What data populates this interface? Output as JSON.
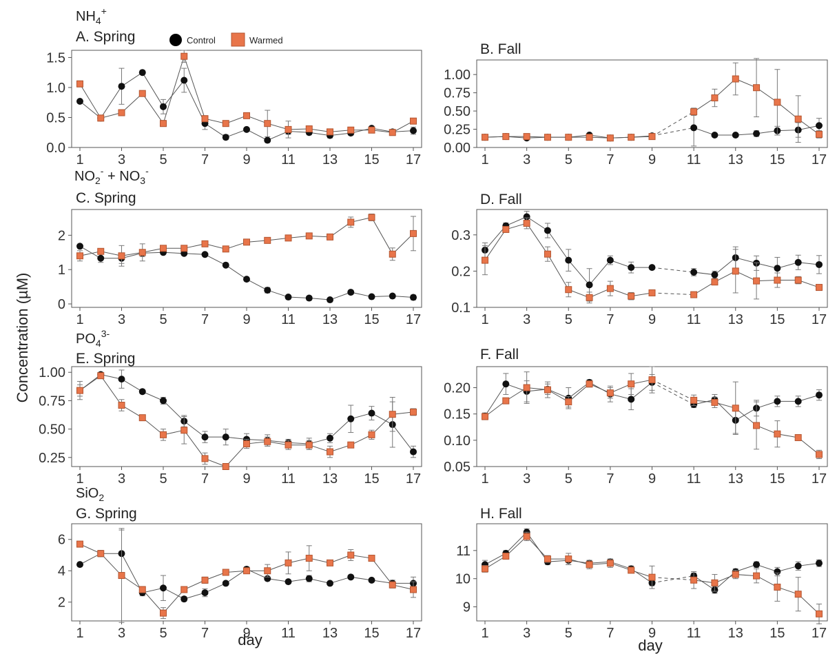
{
  "figure": {
    "ylabel": "Concentration (µM)",
    "xlabel": "day",
    "x_ticks": [
      1,
      3,
      5,
      7,
      9,
      11,
      13,
      15,
      17
    ],
    "legend": [
      {
        "name": "Control",
        "marker": "circle",
        "color": "#000000"
      },
      {
        "name": "Warmed",
        "marker": "square",
        "color": "#E8754A"
      }
    ],
    "colors": {
      "control": "#111111",
      "warmed": "#E8754A",
      "line": "#555555",
      "frame": "#555555"
    },
    "nutrient_labels": [
      "NH4+",
      "NO2- + NO3-",
      "PO43-",
      "SiO2"
    ]
  },
  "chart_data": [
    {
      "type": "line",
      "title": "A. Spring",
      "nutrient": "NH4+",
      "ylim": [
        0,
        1.62
      ],
      "yticks": [
        "0.0",
        "0.5",
        "1.0",
        "1.5"
      ],
      "ytick_values": [
        0,
        0.5,
        1.0,
        1.5
      ],
      "x": [
        1,
        2,
        3,
        4,
        5,
        6,
        7,
        8,
        9,
        10,
        11,
        12,
        13,
        14,
        15,
        16,
        17
      ],
      "series": [
        {
          "name": "Control",
          "values": [
            0.77,
            0.49,
            1.02,
            1.25,
            0.68,
            1.12,
            0.4,
            0.17,
            0.3,
            0.12,
            0.27,
            0.25,
            0.2,
            0.24,
            0.32,
            0.26,
            0.28
          ],
          "errors": [
            0.02,
            0.05,
            0.3,
            0.02,
            0.12,
            0.2,
            0.1,
            0.04,
            0.03,
            0.03,
            0.05,
            0.04,
            0.04,
            0.03,
            0.03,
            0.04,
            0.06
          ]
        },
        {
          "name": "Warmed",
          "values": [
            1.06,
            0.49,
            0.58,
            0.9,
            0.4,
            1.52,
            0.48,
            0.4,
            0.53,
            0.4,
            0.3,
            0.31,
            0.26,
            0.29,
            0.29,
            0.25,
            0.44
          ],
          "errors": [
            0.05,
            0.04,
            0.04,
            0.03,
            0.05,
            0.1,
            0.05,
            0.03,
            0.03,
            0.22,
            0.14,
            0.05,
            0.04,
            0.04,
            0.04,
            0.05,
            0.04
          ]
        }
      ]
    },
    {
      "type": "line",
      "title": "B. Fall",
      "ylim": [
        0,
        1.2
      ],
      "yticks": [
        "0.00",
        "0.25",
        "0.50",
        "0.75",
        "1.00"
      ],
      "ytick_values": [
        0,
        0.25,
        0.5,
        0.75,
        1.0
      ],
      "x": [
        1,
        2,
        3,
        4,
        5,
        6,
        7,
        8,
        9,
        11,
        12,
        13,
        14,
        15,
        16,
        17
      ],
      "dashed_gap": [
        9,
        11
      ],
      "series": [
        {
          "name": "Control",
          "values": [
            0.14,
            0.15,
            0.13,
            0.14,
            0.14,
            0.17,
            0.13,
            0.14,
            0.16,
            0.27,
            0.17,
            0.17,
            0.19,
            0.23,
            0.24,
            0.3
          ],
          "errors": [
            0.02,
            0.02,
            0.02,
            0.02,
            0.02,
            0.02,
            0.02,
            0.02,
            0.02,
            0.25,
            0.02,
            0.02,
            0.04,
            0.06,
            0.1,
            0.1
          ]
        },
        {
          "name": "Warmed",
          "values": [
            0.14,
            0.15,
            0.15,
            0.14,
            0.14,
            0.14,
            0.13,
            0.14,
            0.15,
            0.49,
            0.68,
            0.94,
            0.82,
            0.62,
            0.39,
            0.18
          ],
          "errors": [
            0.02,
            0.02,
            0.02,
            0.02,
            0.02,
            0.02,
            0.02,
            0.02,
            0.02,
            0.05,
            0.12,
            0.22,
            0.4,
            0.45,
            0.32,
            0.05
          ]
        }
      ]
    },
    {
      "type": "line",
      "title": "C. Spring",
      "nutrient": "NO2- + NO3-",
      "ylim": [
        -0.1,
        2.75
      ],
      "yticks": [
        "0",
        "1",
        "2"
      ],
      "ytick_values": [
        0,
        1,
        2
      ],
      "x": [
        1,
        2,
        3,
        4,
        5,
        6,
        7,
        8,
        9,
        10,
        11,
        12,
        13,
        14,
        15,
        16,
        17
      ],
      "series": [
        {
          "name": "Control",
          "values": [
            1.68,
            1.33,
            1.33,
            1.48,
            1.5,
            1.47,
            1.44,
            1.13,
            0.72,
            0.4,
            0.2,
            0.17,
            0.12,
            0.34,
            0.21,
            0.23,
            0.19
          ],
          "errors": [
            0.05,
            0.12,
            0.15,
            0.1,
            0.05,
            0.05,
            0.04,
            0.04,
            0.04,
            0.08,
            0.04,
            0.06,
            0.04,
            0.04,
            0.04,
            0.04,
            0.07
          ]
        },
        {
          "name": "Warmed",
          "values": [
            1.4,
            1.53,
            1.4,
            1.5,
            1.62,
            1.62,
            1.75,
            1.6,
            1.8,
            1.85,
            1.92,
            1.98,
            1.95,
            2.38,
            2.52,
            1.45,
            2.05
          ],
          "errors": [
            0.15,
            0.08,
            0.3,
            0.25,
            0.08,
            0.08,
            0.05,
            0.04,
            0.04,
            0.04,
            0.04,
            0.04,
            0.04,
            0.15,
            0.1,
            0.18,
            0.5
          ]
        }
      ]
    },
    {
      "type": "line",
      "title": "D. Fall",
      "ylim": [
        0.1,
        0.37
      ],
      "yticks": [
        "0.1",
        "0.2",
        "0.3"
      ],
      "ytick_values": [
        0.1,
        0.2,
        0.3
      ],
      "x": [
        1,
        2,
        3,
        4,
        5,
        6,
        7,
        8,
        9,
        11,
        12,
        13,
        14,
        15,
        16,
        17
      ],
      "dashed_gap": [
        9,
        11
      ],
      "series": [
        {
          "name": "Control",
          "values": [
            0.258,
            0.325,
            0.35,
            0.312,
            0.23,
            0.162,
            0.23,
            0.21,
            0.21,
            0.197,
            0.19,
            0.237,
            0.222,
            0.208,
            0.224,
            0.218
          ],
          "errors": [
            0.02,
            0.008,
            0.015,
            0.02,
            0.03,
            0.045,
            0.012,
            0.015,
            0.005,
            0.01,
            0.01,
            0.03,
            0.02,
            0.03,
            0.02,
            0.025
          ]
        },
        {
          "name": "Warmed",
          "values": [
            0.23,
            0.315,
            0.332,
            0.247,
            0.149,
            0.127,
            0.152,
            0.131,
            0.14,
            0.135,
            0.17,
            0.2,
            0.173,
            0.175,
            0.175,
            0.155
          ],
          "errors": [
            0.04,
            0.008,
            0.015,
            0.02,
            0.02,
            0.015,
            0.02,
            0.01,
            0.005,
            0.005,
            0.005,
            0.06,
            0.05,
            0.02,
            0.01,
            0.008
          ]
        }
      ]
    },
    {
      "type": "line",
      "title": "E. Spring",
      "nutrient": "PO43-",
      "ylim": [
        0.17,
        1.05
      ],
      "yticks": [
        "0.25",
        "0.50",
        "0.75",
        "1.00"
      ],
      "ytick_values": [
        0.25,
        0.5,
        0.75,
        1.0
      ],
      "x": [
        1,
        2,
        3,
        4,
        5,
        6,
        7,
        8,
        9,
        10,
        11,
        12,
        13,
        14,
        15,
        16,
        17
      ],
      "series": [
        {
          "name": "Control",
          "values": [
            0.84,
            0.98,
            0.94,
            0.83,
            0.75,
            0.57,
            0.43,
            0.43,
            0.41,
            0.4,
            0.38,
            0.37,
            0.42,
            0.59,
            0.64,
            0.54,
            0.3
          ],
          "errors": [
            0.08,
            0.02,
            0.08,
            0.02,
            0.03,
            0.05,
            0.05,
            0.07,
            0.05,
            0.05,
            0.03,
            0.05,
            0.04,
            0.12,
            0.06,
            0.2,
            0.05
          ]
        },
        {
          "name": "Warmed",
          "values": [
            0.84,
            0.97,
            0.71,
            0.6,
            0.45,
            0.49,
            0.24,
            0.17,
            0.37,
            0.39,
            0.36,
            0.36,
            0.3,
            0.36,
            0.45,
            0.63,
            0.65
          ],
          "errors": [
            0.05,
            0.02,
            0.05,
            0.02,
            0.05,
            0.12,
            0.05,
            0.02,
            0.04,
            0.04,
            0.04,
            0.04,
            0.05,
            0.02,
            0.04,
            0.15,
            0.03
          ]
        }
      ]
    },
    {
      "type": "line",
      "title": "F. Fall",
      "ylim": [
        0.05,
        0.24
      ],
      "yticks": [
        "0.05",
        "0.10",
        "0.15",
        "0.20"
      ],
      "ytick_values": [
        0.05,
        0.1,
        0.15,
        0.2
      ],
      "x": [
        1,
        2,
        3,
        4,
        5,
        6,
        7,
        8,
        9,
        11,
        12,
        13,
        14,
        15,
        16,
        17
      ],
      "dashed_gap": [
        9,
        11
      ],
      "series": [
        {
          "name": "Control",
          "values": [
            0.146,
            0.207,
            0.193,
            0.197,
            0.18,
            0.21,
            0.188,
            0.178,
            0.21,
            0.168,
            0.177,
            0.138,
            0.161,
            0.174,
            0.174,
            0.186
          ],
          "errors": [
            0.006,
            0.02,
            0.02,
            0.01,
            0.02,
            0.005,
            0.015,
            0.02,
            0.015,
            0.006,
            0.01,
            0.025,
            0.015,
            0.01,
            0.01,
            0.01
          ]
        },
        {
          "name": "Warmed",
          "values": [
            0.145,
            0.175,
            0.2,
            0.196,
            0.173,
            0.207,
            0.19,
            0.207,
            0.215,
            0.176,
            0.172,
            0.161,
            0.128,
            0.112,
            0.105,
            0.073
          ],
          "errors": [
            0.006,
            0.005,
            0.03,
            0.015,
            0.01,
            0.006,
            0.01,
            0.02,
            0.025,
            0.01,
            0.01,
            0.05,
            0.045,
            0.025,
            0.004,
            0.008
          ]
        }
      ]
    },
    {
      "type": "line",
      "title": "G. Spring",
      "nutrient": "SiO2",
      "ylim": [
        0.8,
        7.0
      ],
      "yticks": [
        "2",
        "4",
        "6"
      ],
      "ytick_values": [
        2,
        4,
        6
      ],
      "x": [
        1,
        2,
        3,
        4,
        5,
        6,
        7,
        8,
        9,
        10,
        11,
        12,
        13,
        14,
        15,
        16,
        17
      ],
      "series": [
        {
          "name": "Control",
          "values": [
            4.4,
            5.1,
            5.1,
            2.6,
            2.9,
            2.2,
            2.6,
            3.2,
            4.1,
            3.5,
            3.3,
            3.5,
            3.2,
            3.6,
            3.4,
            3.2,
            3.2
          ],
          "errors": [
            0.1,
            0.2,
            1.5,
            0.2,
            0.8,
            0.15,
            0.25,
            0.1,
            0.15,
            0.1,
            0.1,
            0.2,
            0.1,
            0.1,
            0.1,
            0.2,
            0.4
          ]
        },
        {
          "name": "Warmed",
          "values": [
            5.7,
            5.1,
            3.7,
            2.8,
            1.3,
            2.8,
            3.4,
            3.9,
            4.0,
            4.0,
            4.5,
            4.8,
            4.5,
            5.0,
            4.8,
            3.1,
            2.8
          ],
          "errors": [
            0.1,
            0.2,
            3.0,
            0.2,
            0.35,
            0.15,
            0.2,
            0.1,
            0.1,
            0.4,
            0.7,
            0.8,
            0.15,
            0.35,
            0.1,
            0.2,
            0.5
          ]
        }
      ]
    },
    {
      "type": "line",
      "title": "H. Fall",
      "ylim": [
        8.5,
        11.95
      ],
      "yticks": [
        "9",
        "10",
        "11"
      ],
      "ytick_values": [
        9,
        10,
        11
      ],
      "x": [
        1,
        2,
        3,
        4,
        5,
        6,
        7,
        8,
        9,
        11,
        12,
        13,
        14,
        15,
        16,
        17
      ],
      "dashed_gap": [
        9,
        11
      ],
      "series": [
        {
          "name": "Control",
          "values": [
            10.5,
            10.9,
            11.65,
            10.6,
            10.65,
            10.55,
            10.6,
            10.35,
            9.85,
            10.1,
            9.6,
            10.25,
            10.5,
            10.25,
            10.45,
            10.55
          ],
          "errors": [
            0.15,
            0.1,
            0.12,
            0.1,
            0.15,
            0.1,
            0.1,
            0.1,
            0.1,
            0.1,
            0.12,
            0.1,
            0.1,
            0.15,
            0.15,
            0.12
          ]
        },
        {
          "name": "Warmed",
          "values": [
            10.35,
            10.8,
            11.5,
            10.7,
            10.7,
            10.5,
            10.55,
            10.3,
            10.05,
            9.95,
            9.85,
            10.15,
            10.1,
            9.7,
            9.45,
            8.75
          ],
          "errors": [
            0.12,
            0.1,
            0.15,
            0.12,
            0.2,
            0.15,
            0.15,
            0.1,
            0.4,
            0.3,
            0.3,
            0.15,
            0.25,
            0.5,
            0.6,
            0.35
          ]
        }
      ]
    }
  ]
}
